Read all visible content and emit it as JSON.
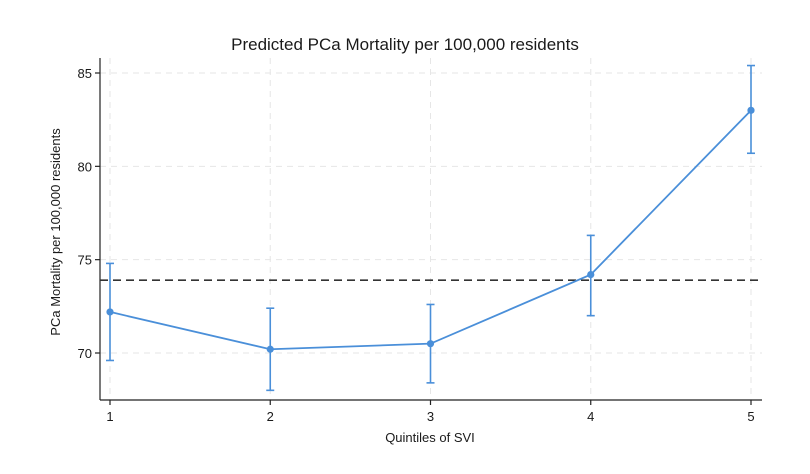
{
  "chart_data": {
    "type": "line",
    "title": "Predicted PCa Mortality per 100,000 residents",
    "xlabel": "Quintiles of SVI",
    "ylabel": "PCa Mortality per 100,000 residents",
    "x": [
      1,
      2,
      3,
      4,
      5
    ],
    "xticks": [
      "1",
      "2",
      "3",
      "4",
      "5"
    ],
    "yticks": [
      "70",
      "75",
      "80",
      "85"
    ],
    "ytick_values": [
      70,
      75,
      80,
      85
    ],
    "xlim": [
      1,
      5
    ],
    "ylim": [
      67.5,
      85.5
    ],
    "grid": true,
    "series": [
      {
        "values": [
          72.2,
          70.2,
          70.5,
          74.2,
          83.0
        ],
        "ci_lower": [
          69.6,
          68.0,
          68.4,
          72.0,
          80.7
        ],
        "ci_upper": [
          74.8,
          72.4,
          72.6,
          76.3,
          85.4
        ],
        "color": "#4a8fd9"
      }
    ],
    "reference_line": {
      "y": 73.9,
      "style": "dashed",
      "color": "#333333"
    }
  }
}
